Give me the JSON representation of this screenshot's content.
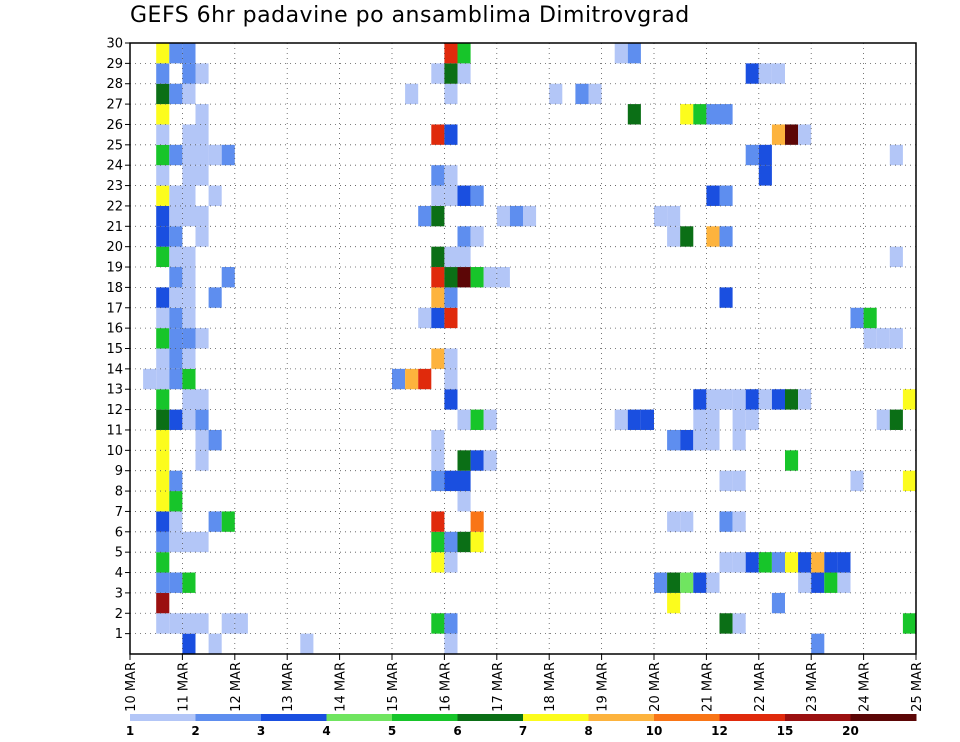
{
  "chart_data": {
    "type": "heatmap",
    "title": "GEFS 6hr padavine po ansamblima Dimitrovgrad",
    "x_unit": "hours since 10 MAR 00Z",
    "x_range": [
      0,
      360
    ],
    "cell_width_hours": 6,
    "y_range": [
      0,
      30
    ],
    "y_ticks": [
      1,
      2,
      3,
      4,
      5,
      6,
      7,
      8,
      9,
      10,
      11,
      12,
      13,
      14,
      15,
      16,
      17,
      18,
      19,
      20,
      21,
      22,
      23,
      24,
      25,
      26,
      27,
      28,
      29,
      30
    ],
    "date_ticks": [
      "10 MAR",
      "11 MAR",
      "12 MAR",
      "13 MAR",
      "14 MAR",
      "15 MAR",
      "16 MAR",
      "17 MAR",
      "18 MAR",
      "19 MAR",
      "20 MAR",
      "21 MAR",
      "22 MAR",
      "23 MAR",
      "24 MAR",
      "25 MAR"
    ],
    "grid": true,
    "legend": {
      "placement": "bottom",
      "labels": [
        "1",
        "2",
        "3",
        "4",
        "5",
        "6",
        "7",
        "8",
        "10",
        "12",
        "15",
        "20"
      ],
      "colors": [
        "#b3c6f7",
        "#5e8eef",
        "#1a4fe0",
        "#70e560",
        "#17c52a",
        "#0b6f16",
        "#fcfc1d",
        "#fdb33d",
        "#f97516",
        "#e02a0c",
        "#9b1010",
        "#5c0606"
      ]
    },
    "rows": [
      {
        "y": 0,
        "cells": [
          [
            24,
            3
          ],
          [
            36,
            1
          ],
          [
            78,
            1
          ],
          [
            144,
            1
          ],
          [
            312,
            2
          ]
        ]
      },
      {
        "y": 1,
        "cells": [
          [
            12,
            1
          ],
          [
            18,
            1
          ],
          [
            24,
            1
          ],
          [
            30,
            1
          ],
          [
            42,
            1
          ],
          [
            48,
            1
          ],
          [
            138,
            5
          ],
          [
            144,
            2
          ],
          [
            270,
            6
          ],
          [
            276,
            1
          ],
          [
            354,
            5
          ]
        ]
      },
      {
        "y": 2,
        "cells": [
          [
            12,
            11
          ],
          [
            246,
            7
          ],
          [
            294,
            2
          ]
        ]
      },
      {
        "y": 3,
        "cells": [
          [
            12,
            2
          ],
          [
            18,
            2
          ],
          [
            24,
            5
          ],
          [
            240,
            2
          ],
          [
            246,
            6
          ],
          [
            252,
            4
          ],
          [
            258,
            3
          ],
          [
            264,
            1
          ],
          [
            306,
            1
          ],
          [
            312,
            3
          ],
          [
            318,
            5
          ],
          [
            324,
            1
          ]
        ]
      },
      {
        "y": 4,
        "cells": [
          [
            12,
            5
          ],
          [
            138,
            7
          ],
          [
            144,
            1
          ],
          [
            270,
            1
          ],
          [
            276,
            1
          ],
          [
            282,
            3
          ],
          [
            288,
            5
          ],
          [
            294,
            2
          ],
          [
            300,
            7
          ],
          [
            306,
            3
          ],
          [
            312,
            8
          ],
          [
            318,
            3
          ],
          [
            324,
            3
          ]
        ]
      },
      {
        "y": 5,
        "cells": [
          [
            12,
            2
          ],
          [
            18,
            1
          ],
          [
            24,
            1
          ],
          [
            30,
            1
          ],
          [
            138,
            5
          ],
          [
            144,
            2
          ],
          [
            150,
            6
          ],
          [
            156,
            7
          ]
        ]
      },
      {
        "y": 6,
        "cells": [
          [
            12,
            3
          ],
          [
            18,
            1
          ],
          [
            36,
            2
          ],
          [
            42,
            5
          ],
          [
            138,
            10
          ],
          [
            156,
            9
          ],
          [
            246,
            1
          ],
          [
            252,
            1
          ],
          [
            270,
            2
          ],
          [
            276,
            1
          ]
        ]
      },
      {
        "y": 7,
        "cells": [
          [
            12,
            7
          ],
          [
            18,
            5
          ],
          [
            150,
            1
          ]
        ]
      },
      {
        "y": 8,
        "cells": [
          [
            12,
            7
          ],
          [
            18,
            2
          ],
          [
            138,
            2
          ],
          [
            144,
            3
          ],
          [
            150,
            3
          ],
          [
            270,
            1
          ],
          [
            276,
            1
          ],
          [
            330,
            1
          ],
          [
            354,
            7
          ]
        ]
      },
      {
        "y": 9,
        "cells": [
          [
            12,
            7
          ],
          [
            30,
            1
          ],
          [
            138,
            1
          ],
          [
            150,
            6
          ],
          [
            156,
            3
          ],
          [
            162,
            1
          ],
          [
            300,
            5
          ]
        ]
      },
      {
        "y": 10,
        "cells": [
          [
            12,
            7
          ],
          [
            30,
            1
          ],
          [
            36,
            2
          ],
          [
            138,
            1
          ],
          [
            246,
            2
          ],
          [
            252,
            3
          ],
          [
            258,
            1
          ],
          [
            264,
            1
          ],
          [
            276,
            1
          ]
        ]
      },
      {
        "y": 11,
        "cells": [
          [
            12,
            6
          ],
          [
            18,
            3
          ],
          [
            24,
            1
          ],
          [
            30,
            2
          ],
          [
            150,
            1
          ],
          [
            156,
            5
          ],
          [
            162,
            1
          ],
          [
            222,
            1
          ],
          [
            228,
            3
          ],
          [
            234,
            3
          ],
          [
            258,
            1
          ],
          [
            264,
            1
          ],
          [
            276,
            1
          ],
          [
            282,
            1
          ],
          [
            342,
            1
          ],
          [
            348,
            6
          ]
        ]
      },
      {
        "y": 12,
        "cells": [
          [
            12,
            5
          ],
          [
            24,
            1
          ],
          [
            30,
            1
          ],
          [
            144,
            3
          ],
          [
            258,
            3
          ],
          [
            264,
            1
          ],
          [
            270,
            1
          ],
          [
            276,
            1
          ],
          [
            282,
            3
          ],
          [
            288,
            1
          ],
          [
            294,
            3
          ],
          [
            300,
            6
          ],
          [
            306,
            1
          ],
          [
            354,
            7
          ]
        ]
      },
      {
        "y": 13,
        "cells": [
          [
            6,
            1
          ],
          [
            12,
            1
          ],
          [
            18,
            2
          ],
          [
            24,
            5
          ],
          [
            120,
            2
          ],
          [
            126,
            8
          ],
          [
            132,
            10
          ],
          [
            144,
            1
          ]
        ]
      },
      {
        "y": 14,
        "cells": [
          [
            12,
            1
          ],
          [
            18,
            2
          ],
          [
            24,
            1
          ],
          [
            138,
            8
          ],
          [
            144,
            1
          ]
        ]
      },
      {
        "y": 15,
        "cells": [
          [
            12,
            5
          ],
          [
            18,
            2
          ],
          [
            24,
            2
          ],
          [
            30,
            1
          ],
          [
            336,
            1
          ],
          [
            342,
            1
          ],
          [
            348,
            1
          ]
        ]
      },
      {
        "y": 16,
        "cells": [
          [
            12,
            1
          ],
          [
            18,
            2
          ],
          [
            24,
            1
          ],
          [
            132,
            1
          ],
          [
            138,
            3
          ],
          [
            144,
            10
          ],
          [
            330,
            2
          ],
          [
            336,
            5
          ]
        ]
      },
      {
        "y": 17,
        "cells": [
          [
            12,
            3
          ],
          [
            18,
            1
          ],
          [
            24,
            1
          ],
          [
            36,
            2
          ],
          [
            138,
            8
          ],
          [
            144,
            2
          ],
          [
            270,
            3
          ]
        ]
      },
      {
        "y": 18,
        "cells": [
          [
            18,
            2
          ],
          [
            24,
            1
          ],
          [
            42,
            2
          ],
          [
            138,
            10
          ],
          [
            144,
            6
          ],
          [
            150,
            12
          ],
          [
            156,
            5
          ],
          [
            162,
            1
          ],
          [
            168,
            1
          ]
        ]
      },
      {
        "y": 19,
        "cells": [
          [
            12,
            5
          ],
          [
            18,
            1
          ],
          [
            24,
            1
          ],
          [
            138,
            6
          ],
          [
            144,
            1
          ],
          [
            150,
            1
          ],
          [
            348,
            1
          ]
        ]
      },
      {
        "y": 20,
        "cells": [
          [
            12,
            3
          ],
          [
            18,
            2
          ],
          [
            30,
            1
          ],
          [
            150,
            2
          ],
          [
            156,
            1
          ],
          [
            246,
            1
          ],
          [
            252,
            6
          ],
          [
            264,
            8
          ],
          [
            270,
            2
          ]
        ]
      },
      {
        "y": 21,
        "cells": [
          [
            12,
            3
          ],
          [
            18,
            1
          ],
          [
            24,
            1
          ],
          [
            30,
            1
          ],
          [
            132,
            2
          ],
          [
            138,
            6
          ],
          [
            168,
            1
          ],
          [
            174,
            2
          ],
          [
            180,
            1
          ],
          [
            240,
            1
          ],
          [
            246,
            1
          ]
        ]
      },
      {
        "y": 22,
        "cells": [
          [
            12,
            7
          ],
          [
            18,
            1
          ],
          [
            24,
            1
          ],
          [
            36,
            1
          ],
          [
            138,
            1
          ],
          [
            144,
            1
          ],
          [
            150,
            3
          ],
          [
            156,
            2
          ],
          [
            264,
            3
          ],
          [
            270,
            2
          ]
        ]
      },
      {
        "y": 23,
        "cells": [
          [
            12,
            1
          ],
          [
            24,
            1
          ],
          [
            30,
            1
          ],
          [
            138,
            2
          ],
          [
            144,
            1
          ],
          [
            288,
            3
          ]
        ]
      },
      {
        "y": 24,
        "cells": [
          [
            12,
            5
          ],
          [
            18,
            2
          ],
          [
            24,
            1
          ],
          [
            30,
            1
          ],
          [
            36,
            1
          ],
          [
            42,
            2
          ],
          [
            282,
            2
          ],
          [
            288,
            3
          ],
          [
            348,
            1
          ]
        ]
      },
      {
        "y": 25,
        "cells": [
          [
            12,
            1
          ],
          [
            24,
            1
          ],
          [
            30,
            1
          ],
          [
            138,
            10
          ],
          [
            144,
            3
          ],
          [
            294,
            8
          ],
          [
            300,
            12
          ],
          [
            306,
            1
          ]
        ]
      },
      {
        "y": 26,
        "cells": [
          [
            12,
            7
          ],
          [
            30,
            1
          ],
          [
            228,
            6
          ],
          [
            252,
            7
          ],
          [
            258,
            5
          ],
          [
            264,
            2
          ],
          [
            270,
            2
          ]
        ]
      },
      {
        "y": 27,
        "cells": [
          [
            12,
            6
          ],
          [
            18,
            2
          ],
          [
            24,
            1
          ],
          [
            126,
            1
          ],
          [
            144,
            1
          ],
          [
            192,
            1
          ],
          [
            204,
            2
          ],
          [
            210,
            1
          ]
        ]
      },
      {
        "y": 28,
        "cells": [
          [
            12,
            2
          ],
          [
            24,
            2
          ],
          [
            30,
            1
          ],
          [
            138,
            1
          ],
          [
            144,
            6
          ],
          [
            150,
            1
          ],
          [
            282,
            3
          ],
          [
            288,
            1
          ],
          [
            294,
            1
          ]
        ]
      },
      {
        "y": 29,
        "cells": [
          [
            12,
            7
          ],
          [
            18,
            2
          ],
          [
            24,
            2
          ],
          [
            144,
            10
          ],
          [
            150,
            5
          ],
          [
            222,
            1
          ],
          [
            228,
            2
          ]
        ]
      }
    ]
  }
}
